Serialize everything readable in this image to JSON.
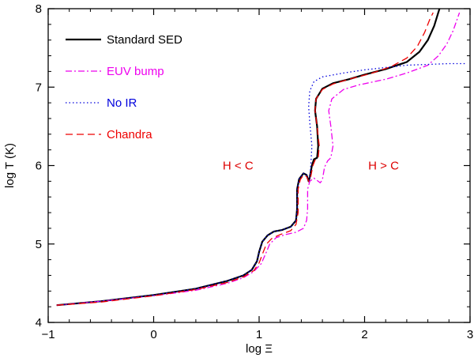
{
  "chart_data": {
    "type": "line",
    "xlabel": "log Ξ",
    "ylabel": "log T (K)",
    "xlim": [
      -1,
      3
    ],
    "ylim": [
      4,
      8
    ],
    "xticks": [
      -1,
      0,
      1,
      2,
      3
    ],
    "yticks": [
      4,
      5,
      6,
      7,
      8
    ],
    "xtick_labels": [
      "−1",
      "0",
      "1",
      "2",
      "3"
    ],
    "ytick_labels": [
      "4",
      "5",
      "6",
      "7",
      "8"
    ],
    "grid": false,
    "legend_placement": "top-left",
    "annotations": [
      {
        "text": "H < C",
        "x": 0.8,
        "y": 6.0,
        "color": "#dd0000"
      },
      {
        "text": "H > C",
        "x": 2.18,
        "y": 6.0,
        "color": "#dd0000"
      }
    ],
    "series": [
      {
        "name": "Standard SED",
        "color": "#000000",
        "dash": "solid",
        "width": 2.2,
        "points": [
          [
            -0.92,
            4.22
          ],
          [
            -0.5,
            4.27
          ],
          [
            0,
            4.35
          ],
          [
            0.4,
            4.43
          ],
          [
            0.7,
            4.53
          ],
          [
            0.85,
            4.6
          ],
          [
            0.93,
            4.67
          ],
          [
            0.98,
            4.78
          ],
          [
            1.0,
            4.9
          ],
          [
            1.03,
            5.03
          ],
          [
            1.08,
            5.11
          ],
          [
            1.14,
            5.16
          ],
          [
            1.22,
            5.18
          ],
          [
            1.3,
            5.22
          ],
          [
            1.35,
            5.3
          ],
          [
            1.36,
            5.45
          ],
          [
            1.36,
            5.7
          ],
          [
            1.38,
            5.83
          ],
          [
            1.42,
            5.9
          ],
          [
            1.45,
            5.88
          ],
          [
            1.47,
            5.8
          ],
          [
            1.48,
            5.85
          ],
          [
            1.5,
            6.0
          ],
          [
            1.52,
            6.08
          ],
          [
            1.55,
            6.1
          ],
          [
            1.56,
            6.25
          ],
          [
            1.55,
            6.5
          ],
          [
            1.53,
            6.7
          ],
          [
            1.54,
            6.85
          ],
          [
            1.6,
            6.98
          ],
          [
            1.7,
            7.05
          ],
          [
            1.85,
            7.1
          ],
          [
            2.0,
            7.16
          ],
          [
            2.2,
            7.23
          ],
          [
            2.4,
            7.32
          ],
          [
            2.52,
            7.45
          ],
          [
            2.6,
            7.6
          ],
          [
            2.66,
            7.78
          ],
          [
            2.71,
            8.0
          ]
        ]
      },
      {
        "name": "EUV bump",
        "color": "#ee00ee",
        "dash": "8,3,2,3",
        "width": 1.3,
        "points": [
          [
            -0.92,
            4.22
          ],
          [
            -0.5,
            4.27
          ],
          [
            0,
            4.34
          ],
          [
            0.4,
            4.41
          ],
          [
            0.7,
            4.5
          ],
          [
            0.85,
            4.57
          ],
          [
            0.95,
            4.65
          ],
          [
            1.02,
            4.75
          ],
          [
            1.07,
            4.9
          ],
          [
            1.1,
            5.0
          ],
          [
            1.16,
            5.08
          ],
          [
            1.25,
            5.12
          ],
          [
            1.35,
            5.15
          ],
          [
            1.42,
            5.2
          ],
          [
            1.45,
            5.3
          ],
          [
            1.46,
            5.45
          ],
          [
            1.46,
            5.7
          ],
          [
            1.48,
            5.8
          ],
          [
            1.52,
            5.84
          ],
          [
            1.56,
            5.8
          ],
          [
            1.58,
            5.78
          ],
          [
            1.6,
            5.82
          ],
          [
            1.62,
            5.98
          ],
          [
            1.65,
            6.06
          ],
          [
            1.68,
            6.1
          ],
          [
            1.7,
            6.25
          ],
          [
            1.68,
            6.5
          ],
          [
            1.66,
            6.7
          ],
          [
            1.69,
            6.85
          ],
          [
            1.8,
            6.97
          ],
          [
            1.95,
            7.03
          ],
          [
            2.2,
            7.1
          ],
          [
            2.4,
            7.18
          ],
          [
            2.6,
            7.28
          ],
          [
            2.7,
            7.4
          ],
          [
            2.78,
            7.55
          ],
          [
            2.84,
            7.72
          ],
          [
            2.9,
            7.95
          ]
        ]
      },
      {
        "name": "No IR",
        "color": "#0000dd",
        "dash": "1.5,3",
        "width": 1.3,
        "points": [
          [
            -0.92,
            4.22
          ],
          [
            -0.5,
            4.27
          ],
          [
            0,
            4.35
          ],
          [
            0.4,
            4.43
          ],
          [
            0.7,
            4.53
          ],
          [
            0.85,
            4.6
          ],
          [
            0.93,
            4.67
          ],
          [
            0.98,
            4.78
          ],
          [
            1.0,
            4.9
          ],
          [
            1.03,
            5.03
          ],
          [
            1.08,
            5.11
          ],
          [
            1.14,
            5.16
          ],
          [
            1.22,
            5.18
          ],
          [
            1.3,
            5.22
          ],
          [
            1.35,
            5.3
          ],
          [
            1.36,
            5.45
          ],
          [
            1.36,
            5.7
          ],
          [
            1.38,
            5.83
          ],
          [
            1.42,
            5.9
          ],
          [
            1.45,
            5.88
          ],
          [
            1.47,
            5.8
          ],
          [
            1.48,
            5.85
          ],
          [
            1.49,
            6.0
          ],
          [
            1.5,
            6.25
          ],
          [
            1.48,
            6.55
          ],
          [
            1.47,
            6.75
          ],
          [
            1.48,
            6.95
          ],
          [
            1.52,
            7.07
          ],
          [
            1.6,
            7.13
          ],
          [
            1.8,
            7.18
          ],
          [
            2.0,
            7.22
          ],
          [
            2.2,
            7.25
          ],
          [
            2.4,
            7.28
          ],
          [
            2.6,
            7.29
          ],
          [
            2.8,
            7.3
          ],
          [
            2.95,
            7.3
          ]
        ]
      },
      {
        "name": "Chandra",
        "color": "#ee0000",
        "dash": "9,5",
        "width": 1.3,
        "points": [
          [
            -0.92,
            4.22
          ],
          [
            -0.5,
            4.26
          ],
          [
            0,
            4.34
          ],
          [
            0.4,
            4.42
          ],
          [
            0.7,
            4.51
          ],
          [
            0.85,
            4.58
          ],
          [
            0.95,
            4.66
          ],
          [
            1.0,
            4.76
          ],
          [
            1.04,
            4.9
          ],
          [
            1.07,
            5.0
          ],
          [
            1.12,
            5.07
          ],
          [
            1.2,
            5.12
          ],
          [
            1.3,
            5.17
          ],
          [
            1.35,
            5.25
          ],
          [
            1.37,
            5.4
          ],
          [
            1.37,
            5.7
          ],
          [
            1.39,
            5.82
          ],
          [
            1.42,
            5.88
          ],
          [
            1.45,
            5.86
          ],
          [
            1.47,
            5.8
          ],
          [
            1.49,
            5.86
          ],
          [
            1.51,
            6.0
          ],
          [
            1.53,
            6.07
          ],
          [
            1.56,
            6.1
          ],
          [
            1.57,
            6.25
          ],
          [
            1.55,
            6.5
          ],
          [
            1.53,
            6.7
          ],
          [
            1.54,
            6.85
          ],
          [
            1.6,
            6.97
          ],
          [
            1.7,
            7.04
          ],
          [
            1.85,
            7.1
          ],
          [
            2.05,
            7.17
          ],
          [
            2.25,
            7.26
          ],
          [
            2.4,
            7.37
          ],
          [
            2.5,
            7.52
          ],
          [
            2.57,
            7.7
          ],
          [
            2.62,
            7.87
          ],
          [
            2.65,
            7.95
          ]
        ]
      }
    ]
  }
}
